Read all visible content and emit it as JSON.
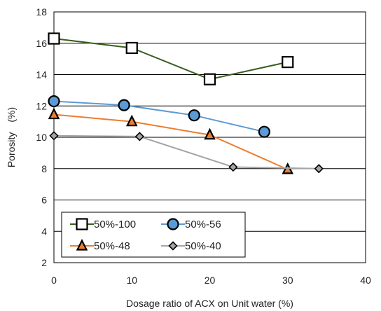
{
  "chart_data": {
    "type": "line",
    "title": "",
    "xlabel": "Dosage ratio of ACX on Unit water (%)",
    "ylabel": "Porosity　(%)",
    "xlim": [
      0,
      40
    ],
    "ylim": [
      2,
      18
    ],
    "x_ticks": [
      "0",
      "10",
      "20",
      "30",
      "40"
    ],
    "y_ticks": [
      "2",
      "4",
      "6",
      "8",
      "10",
      "12",
      "14",
      "16",
      "18"
    ],
    "grid": "horizontal",
    "legend_position": "lower-left",
    "series": [
      {
        "name": "50%-100",
        "marker": "square",
        "line_color": "#3a5e1e",
        "marker_fill": "#ffffff",
        "points": [
          [
            0,
            16.3
          ],
          [
            10,
            15.7
          ],
          [
            20,
            13.7
          ],
          [
            30,
            14.8
          ]
        ]
      },
      {
        "name": "50%-56",
        "marker": "circle",
        "line_color": "#5b9bd5",
        "marker_fill": "#5b9bd5",
        "points": [
          [
            0,
            12.3
          ],
          [
            9,
            12.05
          ],
          [
            18,
            11.4
          ],
          [
            27,
            10.35
          ]
        ]
      },
      {
        "name": "50%-48",
        "marker": "triangle",
        "line_color": "#ed7d31",
        "marker_fill": "#ed7d31",
        "points": [
          [
            0,
            11.45
          ],
          [
            10,
            11.0
          ],
          [
            20,
            10.15
          ],
          [
            30,
            7.95
          ]
        ]
      },
      {
        "name": "50%-40",
        "marker": "diamond",
        "line_color": "#a5a5a5",
        "marker_fill": "#a5a5a5",
        "points": [
          [
            0,
            10.1
          ],
          [
            11,
            10.05
          ],
          [
            23,
            8.1
          ],
          [
            34,
            8.0
          ]
        ]
      }
    ]
  }
}
